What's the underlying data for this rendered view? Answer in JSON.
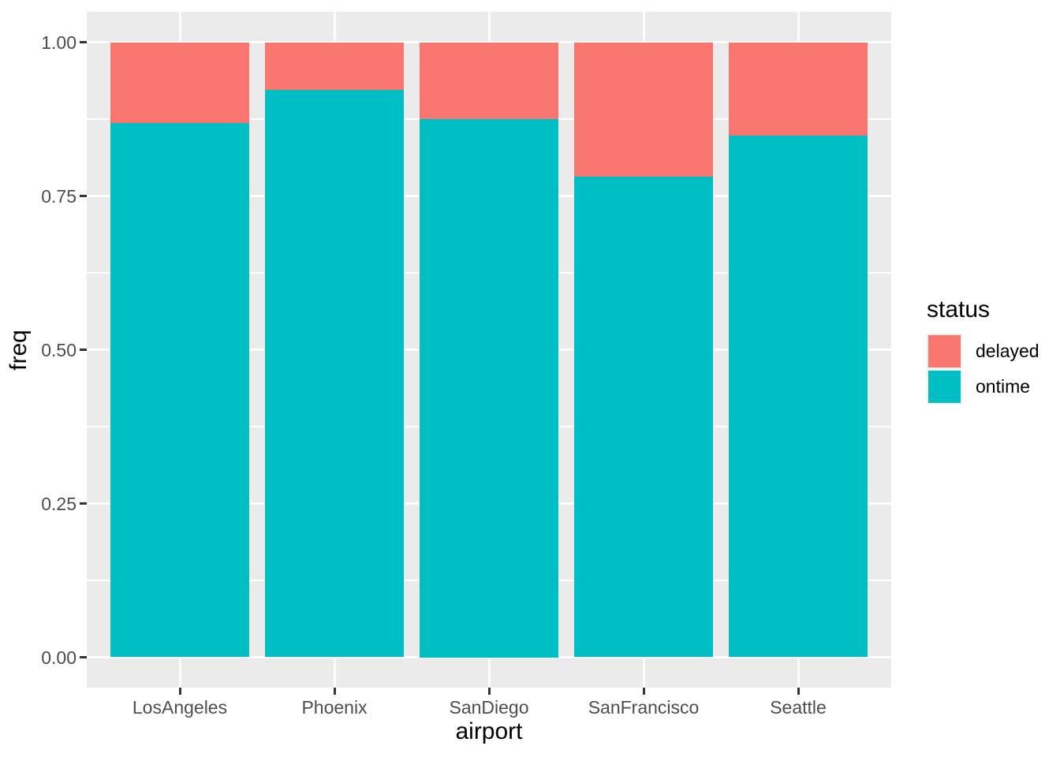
{
  "chart_data": {
    "type": "bar",
    "stacking": "fill",
    "orientation": "vertical",
    "title": "",
    "categories": [
      "LosAngeles",
      "Phoenix",
      "SanDiego",
      "SanFrancisco",
      "Seattle"
    ],
    "series": [
      {
        "name": "delayed",
        "color": "#F8766D",
        "values": [
          0.131,
          0.078,
          0.125,
          0.219,
          0.152
        ]
      },
      {
        "name": "ontime",
        "color": "#00BFC4",
        "values": [
          0.869,
          0.922,
          0.875,
          0.781,
          0.848
        ]
      }
    ],
    "xlabel": "airport",
    "ylabel": "freq",
    "ylim": [
      0,
      1
    ],
    "y_ticks": {
      "values": [
        1.0,
        0.75,
        0.5,
        0.25,
        0.0
      ],
      "labels": [
        "1.00",
        "0.75",
        "0.50",
        "0.25",
        "0.00"
      ]
    },
    "y_minor_ticks": [
      0.875,
      0.625,
      0.375,
      0.125
    ],
    "grid": {
      "major": true,
      "minor": true,
      "color": "#FFFFFF"
    },
    "legend": {
      "title": "status",
      "position": "right",
      "entries": [
        {
          "label": "delayed",
          "color": "#F8766D"
        },
        {
          "label": "ontime",
          "color": "#00BFC4"
        }
      ]
    }
  },
  "style": {
    "figure_bg": "#FFFFFF",
    "panel_bg": "#EBEBEB",
    "gridline_color": "#FFFFFF",
    "tick_label_color": "#4D4D4D",
    "axis_title_color": "#000000",
    "tick_mark_color": "#333333"
  }
}
